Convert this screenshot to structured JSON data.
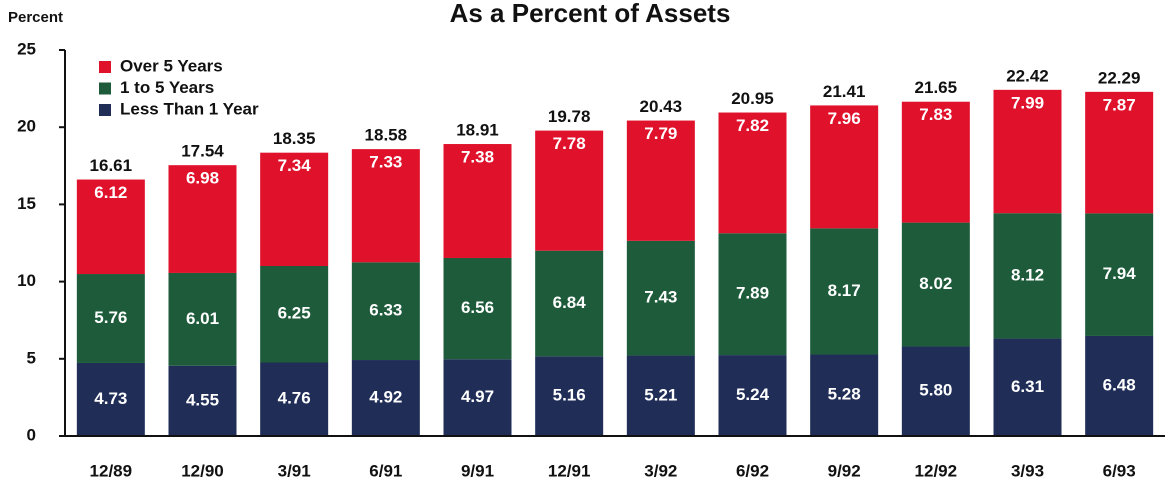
{
  "chart_data": {
    "type": "stacked_bar",
    "title": "As a Percent of Assets",
    "y_label": "Percent",
    "categories": [
      "12/89",
      "12/90",
      "3/91",
      "6/91",
      "9/91",
      "12/91",
      "3/92",
      "6/92",
      "9/92",
      "12/92",
      "3/93",
      "6/93"
    ],
    "series": [
      {
        "name": "Less Than 1 Year",
        "color": "#1f2d57",
        "values": [
          4.73,
          4.55,
          4.76,
          4.92,
          4.97,
          5.16,
          5.21,
          5.24,
          5.28,
          5.8,
          6.31,
          6.48
        ],
        "value_labels": [
          "4.73",
          "4.55",
          "4.76",
          "4.92",
          "4.97",
          "5.16",
          "5.21",
          "5.24",
          "5.28",
          "5.80",
          "6.31",
          "6.48"
        ]
      },
      {
        "name": "1 to 5 Years",
        "color": "#1d5b3a",
        "values": [
          5.76,
          6.01,
          6.25,
          6.33,
          6.56,
          6.84,
          7.43,
          7.89,
          8.17,
          8.02,
          8.12,
          7.94
        ]
      },
      {
        "name": "Over 5 Years",
        "color": "#e0112b",
        "values": [
          6.12,
          6.98,
          7.34,
          7.33,
          7.38,
          7.78,
          7.79,
          7.82,
          7.96,
          7.83,
          7.99,
          7.87
        ]
      }
    ],
    "totals": [
      16.61,
      17.54,
      18.35,
      18.58,
      18.91,
      19.78,
      20.43,
      20.95,
      21.41,
      21.65,
      22.42,
      22.29
    ],
    "ylim": [
      0,
      25
    ],
    "yticks": [
      0,
      5,
      10,
      15,
      20,
      25
    ],
    "grid": false,
    "legend": "upper left"
  }
}
